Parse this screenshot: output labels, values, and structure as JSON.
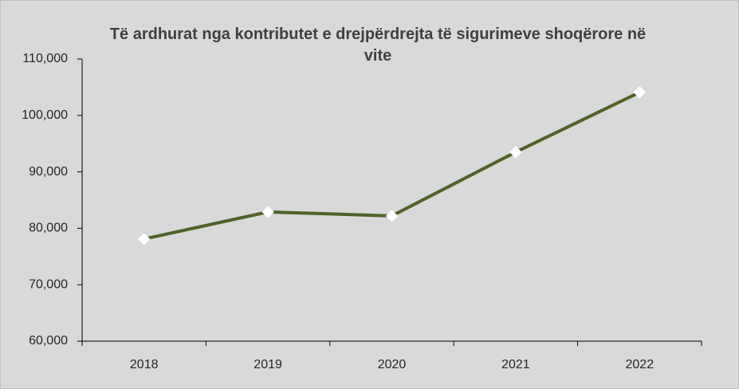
{
  "chart_data": {
    "type": "line",
    "title": "Të ardhurat nga kontributet e drejpërdrejta të sigurimeve shoqërore në vite",
    "categories": [
      "2018",
      "2019",
      "2020",
      "2021",
      "2022"
    ],
    "series": [
      {
        "name": "Të ardhurat",
        "color": "#4f6228",
        "values": [
          78100,
          82900,
          82200,
          93500,
          104100
        ]
      }
    ],
    "ylim": [
      60000,
      110000
    ],
    "yticks": [
      {
        "value": 60000,
        "label": "60,000"
      },
      {
        "value": 70000,
        "label": "70,000"
      },
      {
        "value": 80000,
        "label": "80,000"
      },
      {
        "value": 90000,
        "label": "90,000"
      },
      {
        "value": 100000,
        "label": "100,000"
      },
      {
        "value": 110000,
        "label": "110,000"
      }
    ],
    "grid": false
  }
}
